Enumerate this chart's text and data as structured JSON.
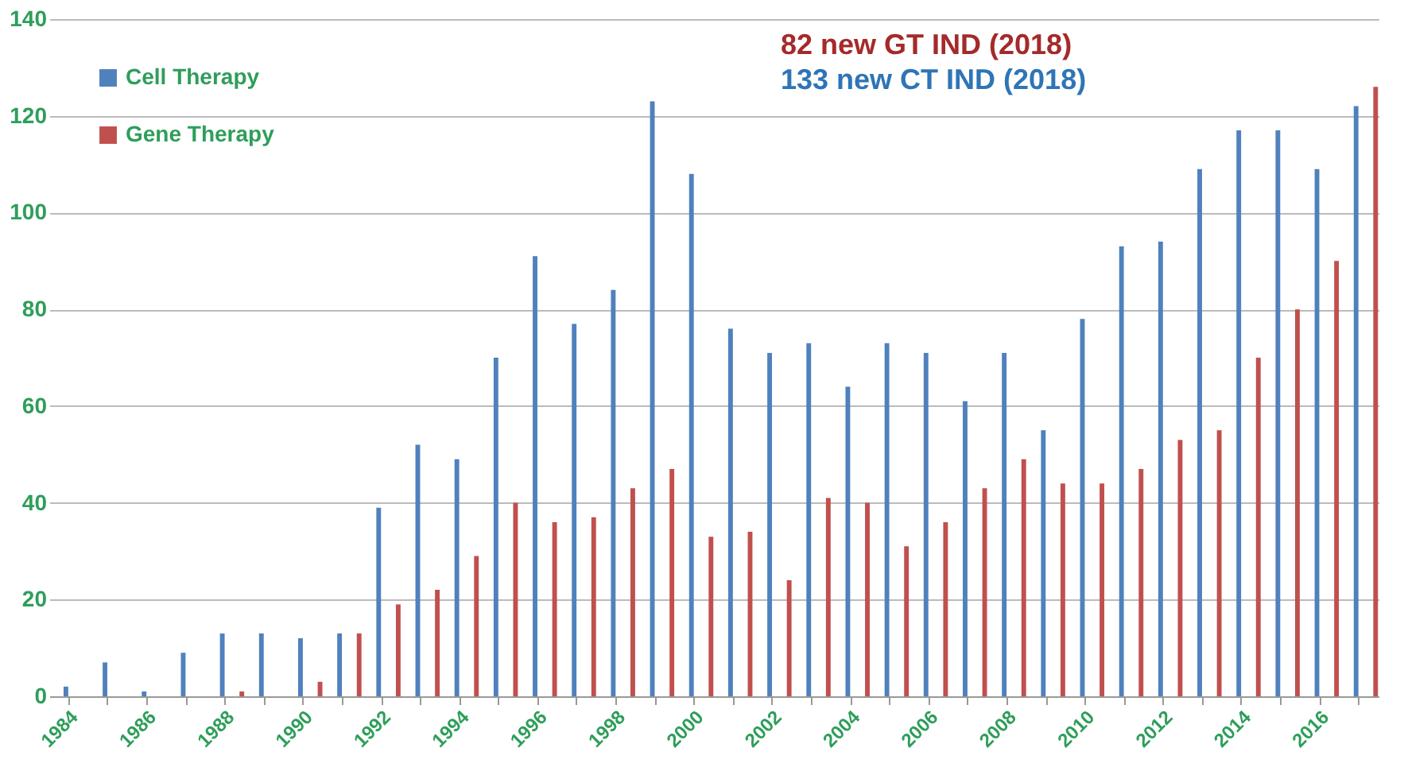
{
  "chart_data": {
    "type": "bar",
    "categories": [
      "1984",
      null,
      "1986",
      null,
      "1988",
      null,
      "1990",
      null,
      "1992",
      null,
      "1994",
      null,
      "1996",
      null,
      "1998",
      null,
      "2000",
      null,
      "2002",
      null,
      "2004",
      null,
      "2006",
      null,
      "2008",
      null,
      "2010",
      null,
      "2012",
      null,
      "2014",
      null,
      "2016",
      null
    ],
    "series": [
      {
        "name": "Cell Therapy",
        "color": "#4f81bd",
        "values": [
          2,
          7,
          1,
          9,
          13,
          13,
          12,
          13,
          39,
          52,
          49,
          70,
          91,
          77,
          84,
          123,
          108,
          76,
          71,
          73,
          64,
          73,
          71,
          61,
          71,
          55,
          78,
          93,
          94,
          109,
          117,
          117,
          109,
          122
        ]
      },
      {
        "name": "Gene Therapy",
        "color": "#c0504d",
        "values": [
          0,
          0,
          0,
          0,
          1,
          0,
          3,
          13,
          19,
          22,
          29,
          40,
          36,
          37,
          43,
          47,
          33,
          34,
          24,
          41,
          40,
          31,
          36,
          43,
          49,
          44,
          44,
          47,
          53,
          55,
          70,
          80,
          90,
          126
        ]
      }
    ],
    "ylim": [
      0,
      140
    ],
    "yticks": [
      0,
      20,
      40,
      60,
      80,
      100,
      120,
      140
    ],
    "grid": "y",
    "legend": "top left",
    "annotations": [
      "82  new GT IND (2018)",
      "133 new CT IND (2018)"
    ]
  }
}
